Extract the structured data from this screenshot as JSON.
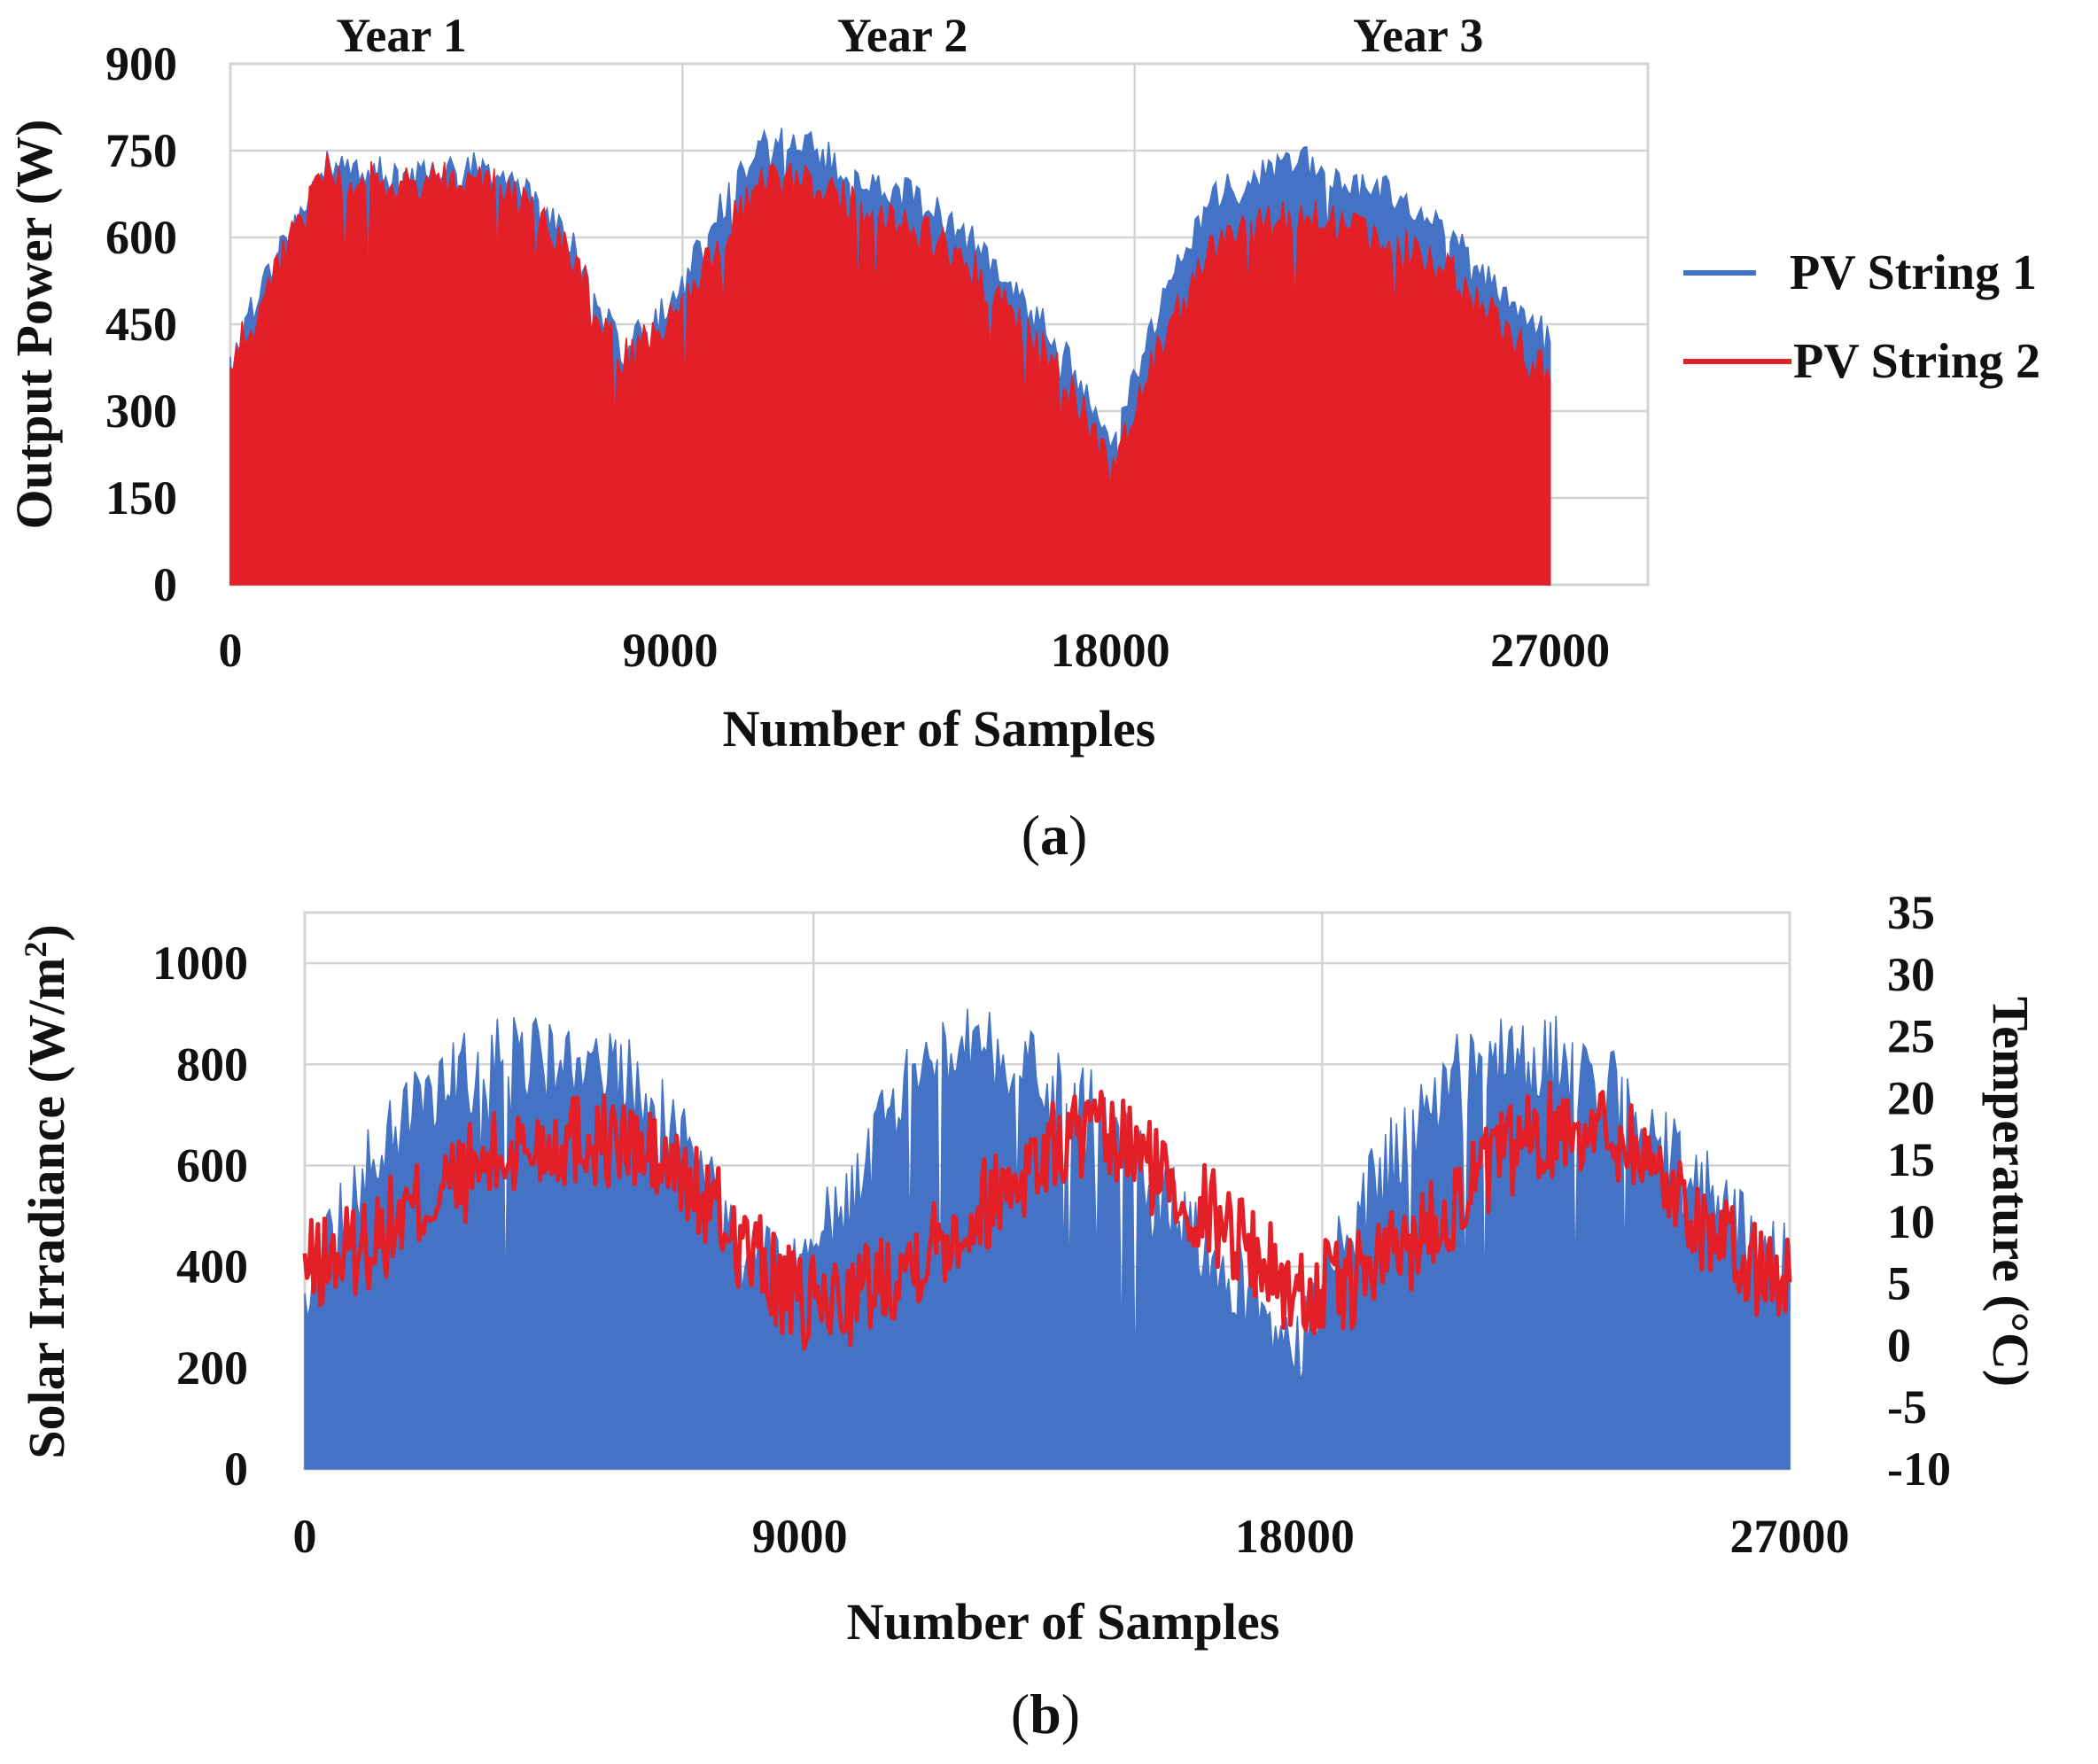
{
  "chart_data": [
    {
      "id": "a",
      "type": "area",
      "caption": {
        "open": "(",
        "letter": "a",
        "close": ")"
      },
      "xlabel": "Number of Samples",
      "ylabel": "Output Power (W)",
      "xlim": [
        0,
        29000
      ],
      "ylim": [
        0,
        900
      ],
      "xticks": [
        "0",
        "9000",
        "18000",
        "27000"
      ],
      "xtick_values": [
        0,
        9000,
        18000,
        27000
      ],
      "yticks": [
        "0",
        "150",
        "300",
        "450",
        "600",
        "750",
        "900"
      ],
      "ytick_values": [
        0,
        150,
        300,
        450,
        600,
        750,
        900
      ],
      "x_gridlines": [
        9250,
        18500,
        29000
      ],
      "annotations": [
        {
          "text": "Year 1",
          "x": 3500
        },
        {
          "text": "Year 2",
          "x": 13750
        },
        {
          "text": "Year 3",
          "x": 24300
        }
      ],
      "legend_position": "right",
      "series": [
        {
          "name": "PV String 1",
          "color": "#4472c4",
          "x": [
            0,
            1000,
            2000,
            3000,
            4000,
            5000,
            6000,
            7000,
            8000,
            9000,
            10000,
            11000,
            12000,
            13000,
            14000,
            15000,
            16000,
            17000,
            18000,
            19000,
            20000,
            21000,
            22000,
            23000,
            24000,
            25000,
            26000,
            27000
          ],
          "values": [
            430,
            600,
            760,
            740,
            740,
            750,
            710,
            620,
            430,
            510,
            680,
            800,
            780,
            720,
            700,
            640,
            540,
            440,
            260,
            500,
            690,
            740,
            760,
            720,
            700,
            640,
            540,
            460
          ]
        },
        {
          "name": "PV String 2",
          "color": "#e32028",
          "x": [
            0,
            1000,
            2000,
            3000,
            4000,
            5000,
            6000,
            7000,
            8000,
            9000,
            10000,
            11000,
            12000,
            13000,
            14000,
            15000,
            16000,
            17000,
            18000,
            19000,
            20000,
            21000,
            22000,
            23000,
            24000,
            25000,
            26000,
            27000
          ],
          "values": [
            420,
            590,
            750,
            730,
            730,
            740,
            700,
            610,
            420,
            490,
            630,
            740,
            720,
            680,
            650,
            600,
            500,
            400,
            240,
            440,
            610,
            650,
            680,
            650,
            620,
            570,
            480,
            400
          ]
        }
      ]
    },
    {
      "id": "b",
      "type": "area",
      "caption": {
        "open": "(",
        "letter": "b",
        "close": ")"
      },
      "xlabel": "Number of Samples",
      "ylabel_prefix": "Solar Irradiance (W/m",
      "ylabel_sup": "2",
      "ylabel_suffix": ")",
      "y2label": "Temperature (°C)",
      "xlim": [
        0,
        27000
      ],
      "ylim": [
        0,
        1100
      ],
      "y2lim": [
        -10,
        35
      ],
      "xticks": [
        "0",
        "9000",
        "18000",
        "27000"
      ],
      "xtick_values": [
        0,
        9000,
        18000,
        27000
      ],
      "yticks": [
        "0",
        "200",
        "400",
        "600",
        "800",
        "1000"
      ],
      "ytick_values": [
        0,
        200,
        400,
        600,
        800,
        1000
      ],
      "y2ticks": [
        "-10",
        "-5",
        "0",
        "5",
        "10",
        "15",
        "20",
        "25",
        "30",
        "35"
      ],
      "y2tick_values": [
        -10,
        -5,
        0,
        5,
        10,
        15,
        20,
        25,
        30,
        35
      ],
      "x_gridlines": [
        9250,
        18500,
        27000
      ],
      "series": [
        {
          "name": "Solar Irradiance",
          "axis": "left",
          "color": "#4472c4",
          "x": [
            0,
            1000,
            2000,
            3000,
            4000,
            5000,
            6000,
            7000,
            8000,
            9000,
            10000,
            11000,
            12000,
            13000,
            14000,
            15000,
            16000,
            17000,
            18000,
            19000,
            20000,
            21000,
            22000,
            23000,
            24000,
            25000,
            26000,
            27000
          ],
          "values": [
            450,
            650,
            820,
            880,
            900,
            900,
            860,
            700,
            520,
            480,
            650,
            850,
            940,
            900,
            820,
            720,
            580,
            460,
            330,
            560,
            750,
            880,
            920,
            890,
            820,
            700,
            560,
            480
          ]
        },
        {
          "name": "Temperature",
          "axis": "right",
          "color": "#e32028",
          "x": [
            0,
            1000,
            2000,
            3000,
            4000,
            5000,
            6000,
            7000,
            8000,
            9000,
            10000,
            11000,
            12000,
            13000,
            14000,
            15000,
            16000,
            17000,
            18000,
            19000,
            20000,
            21000,
            22000,
            23000,
            24000,
            25000,
            26000,
            27000
          ],
          "values": [
            6,
            8,
            11,
            14,
            16,
            17,
            16,
            13,
            8,
            3,
            4,
            7,
            10,
            14,
            17,
            16,
            12,
            9,
            4,
            5,
            8,
            12,
            16,
            18,
            17,
            12,
            7,
            5
          ]
        }
      ]
    }
  ]
}
